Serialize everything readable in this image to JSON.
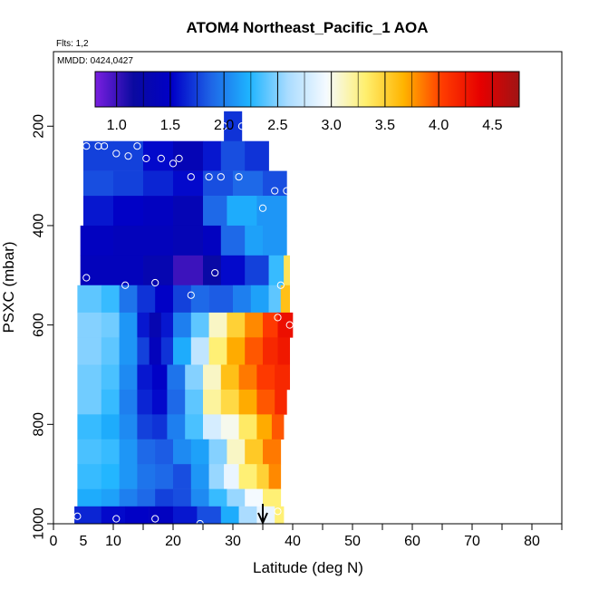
{
  "chart_data": {
    "type": "heatmap",
    "title": "ATOM4 Northeast_Pacific_1 AOA",
    "flights_label": "Flts: 1,2",
    "dates_label": "MMDD: 0424,0427",
    "xlabel": "Latitude (deg N)",
    "ylabel": "PSXC (mbar)",
    "xlim": [
      0,
      85
    ],
    "ylim": [
      1000,
      50
    ],
    "x_ticks": [
      0,
      10,
      20,
      30,
      40,
      50,
      60,
      70,
      80
    ],
    "x_tick_labels": [
      "0",
      "5",
      "10",
      "20",
      "30",
      "40",
      "50",
      "60",
      "70",
      "80"
    ],
    "x_tick_label_values": [
      0,
      5,
      10,
      20,
      30,
      40,
      50,
      60,
      70,
      80
    ],
    "x_minor_ticks": [
      15,
      25,
      35,
      45,
      55,
      65,
      75,
      85
    ],
    "y_ticks": [
      200,
      400,
      600,
      800,
      1000
    ],
    "y_tick_labels": [
      "200",
      "400",
      "600",
      "800",
      "1000"
    ],
    "colorbar": {
      "range": [
        0.8,
        4.75
      ],
      "ticks": [
        1.0,
        1.5,
        2.0,
        2.5,
        3.0,
        3.5,
        4.0,
        4.5
      ],
      "tick_labels": [
        "1.0",
        "1.5",
        "2.0",
        "2.5",
        "3.0",
        "3.5",
        "4.0",
        "4.5"
      ],
      "colors": [
        "#7a1fe0",
        "#0a0aa0",
        "#0000c8",
        "#1e64e6",
        "#1eb4ff",
        "#aadcff",
        "#f5faff",
        "#fff070",
        "#ffb400",
        "#ff3c00",
        "#e60000",
        "#a01414"
      ]
    },
    "rows": [
      {
        "p1": 170,
        "p2": 230,
        "cells": [
          [
            28.5,
            31.5,
            1.7
          ]
        ]
      },
      {
        "p1": 230,
        "p2": 290,
        "cells": [
          [
            5,
            10,
            1.75
          ],
          [
            10,
            15,
            1.75
          ],
          [
            15,
            20,
            1.55
          ],
          [
            20,
            25,
            1.35
          ],
          [
            25,
            28,
            1.6
          ],
          [
            28,
            32,
            1.8
          ],
          [
            32,
            36,
            1.7
          ]
        ]
      },
      {
        "p1": 290,
        "p2": 340,
        "cells": [
          [
            5,
            10,
            1.8
          ],
          [
            10,
            15,
            1.75
          ],
          [
            15,
            20,
            1.65
          ],
          [
            20,
            25,
            1.55
          ],
          [
            25,
            30,
            1.8
          ],
          [
            30,
            35,
            1.9
          ],
          [
            35,
            39,
            1.8
          ]
        ]
      },
      {
        "p1": 340,
        "p2": 400,
        "cells": [
          [
            5,
            10,
            1.6
          ],
          [
            10,
            15,
            1.5
          ],
          [
            15,
            20,
            1.45
          ],
          [
            20,
            25,
            1.35
          ],
          [
            25,
            29,
            1.9
          ],
          [
            29,
            34,
            2.2
          ],
          [
            34,
            39,
            2.1
          ]
        ]
      },
      {
        "p1": 400,
        "p2": 460,
        "cells": [
          [
            4.5,
            10,
            1.45
          ],
          [
            10,
            15,
            1.4
          ],
          [
            15,
            20,
            1.4
          ],
          [
            20,
            25,
            1.35
          ],
          [
            25,
            28,
            1.45
          ],
          [
            28,
            32,
            1.9
          ],
          [
            32,
            35,
            2.15
          ],
          [
            35,
            39,
            2.1
          ]
        ]
      },
      {
        "p1": 460,
        "p2": 520,
        "cells": [
          [
            4.5,
            10,
            1.4
          ],
          [
            10,
            15,
            1.4
          ],
          [
            15,
            20,
            1.3
          ],
          [
            20,
            25,
            1.0
          ],
          [
            25,
            28,
            1.2
          ],
          [
            28,
            32,
            1.55
          ],
          [
            32,
            36,
            1.75
          ],
          [
            36,
            38.5,
            2.3
          ],
          [
            38.5,
            39.5,
            3.4
          ]
        ]
      },
      {
        "p1": 520,
        "p2": 575,
        "cells": [
          [
            4,
            8,
            2.4
          ],
          [
            8,
            11,
            2.3
          ],
          [
            11,
            14,
            1.95
          ],
          [
            14,
            17,
            1.7
          ],
          [
            17,
            20,
            1.5
          ],
          [
            20,
            23,
            1.75
          ],
          [
            23,
            26,
            1.9
          ],
          [
            26,
            30,
            1.85
          ],
          [
            30,
            33,
            2.0
          ],
          [
            33,
            36,
            2.15
          ],
          [
            36,
            38,
            2.4
          ],
          [
            38,
            39.5,
            3.6
          ]
        ]
      },
      {
        "p1": 575,
        "p2": 625,
        "cells": [
          [
            4,
            8,
            2.5
          ],
          [
            8,
            11,
            2.45
          ],
          [
            11,
            14,
            2.1
          ],
          [
            14,
            16,
            1.6
          ],
          [
            16,
            18,
            1.3
          ],
          [
            18,
            20,
            1.6
          ],
          [
            20,
            23,
            2.0
          ],
          [
            23,
            26,
            2.4
          ],
          [
            26,
            29,
            3.1
          ],
          [
            29,
            32,
            3.5
          ],
          [
            32,
            35,
            3.8
          ],
          [
            35,
            37.5,
            4.05
          ],
          [
            37.5,
            40,
            4.3
          ]
        ]
      },
      {
        "p1": 625,
        "p2": 680,
        "cells": [
          [
            4,
            8,
            2.5
          ],
          [
            8,
            11,
            2.4
          ],
          [
            11,
            14,
            2.1
          ],
          [
            14,
            16,
            1.75
          ],
          [
            16,
            18,
            1.4
          ],
          [
            18,
            20,
            1.7
          ],
          [
            20,
            23,
            2.2
          ],
          [
            23,
            26,
            2.7
          ],
          [
            26,
            29,
            3.3
          ],
          [
            29,
            32,
            3.7
          ],
          [
            32,
            35,
            3.95
          ],
          [
            35,
            37.5,
            4.15
          ],
          [
            37.5,
            39.5,
            4.25
          ]
        ]
      },
      {
        "p1": 680,
        "p2": 730,
        "cells": [
          [
            4,
            8,
            2.45
          ],
          [
            8,
            11,
            2.35
          ],
          [
            11,
            14,
            2.05
          ],
          [
            14,
            16.5,
            1.6
          ],
          [
            16.5,
            19,
            1.5
          ],
          [
            19,
            22,
            1.95
          ],
          [
            22,
            25,
            2.5
          ],
          [
            25,
            28,
            3.1
          ],
          [
            28,
            31,
            3.6
          ],
          [
            31,
            34,
            3.85
          ],
          [
            34,
            37,
            4.05
          ],
          [
            37,
            39.5,
            4.15
          ]
        ]
      },
      {
        "p1": 730,
        "p2": 780,
        "cells": [
          [
            4,
            8,
            2.45
          ],
          [
            8,
            11,
            2.3
          ],
          [
            11,
            14,
            2.0
          ],
          [
            14,
            16.5,
            1.65
          ],
          [
            16.5,
            19,
            1.55
          ],
          [
            19,
            22,
            1.9
          ],
          [
            22,
            25,
            2.4
          ],
          [
            25,
            28,
            3.2
          ],
          [
            28,
            31,
            3.45
          ],
          [
            31,
            34,
            3.7
          ],
          [
            34,
            37,
            3.95
          ],
          [
            37,
            39,
            4.15
          ]
        ]
      },
      {
        "p1": 780,
        "p2": 830,
        "cells": [
          [
            4,
            8,
            2.3
          ],
          [
            8,
            11,
            2.2
          ],
          [
            11,
            14,
            2.05
          ],
          [
            14,
            16.5,
            1.75
          ],
          [
            16.5,
            19,
            1.7
          ],
          [
            19,
            22,
            2.0
          ],
          [
            22,
            25,
            2.35
          ],
          [
            25,
            28,
            2.8
          ],
          [
            28,
            31,
            3.0
          ],
          [
            31,
            34,
            3.35
          ],
          [
            34,
            36.5,
            3.7
          ],
          [
            36.5,
            38.5,
            3.95
          ]
        ]
      },
      {
        "p1": 830,
        "p2": 880,
        "cells": [
          [
            4,
            8,
            2.35
          ],
          [
            8,
            11,
            2.3
          ],
          [
            11,
            14,
            2.1
          ],
          [
            14,
            17,
            1.9
          ],
          [
            17,
            20,
            1.85
          ],
          [
            20,
            23,
            2.05
          ],
          [
            23,
            26,
            2.15
          ],
          [
            26,
            29,
            2.5
          ],
          [
            29,
            32,
            3.1
          ],
          [
            32,
            35,
            3.55
          ],
          [
            35,
            38,
            3.85
          ]
        ]
      },
      {
        "p1": 880,
        "p2": 930,
        "cells": [
          [
            4,
            8,
            2.3
          ],
          [
            8,
            11,
            2.25
          ],
          [
            11,
            14,
            2.1
          ],
          [
            14,
            17,
            1.95
          ],
          [
            17,
            20,
            1.9
          ],
          [
            20,
            23,
            1.8
          ],
          [
            23,
            26,
            2.1
          ],
          [
            26,
            28.5,
            2.55
          ],
          [
            28.5,
            31,
            2.9
          ],
          [
            31,
            34,
            3.3
          ],
          [
            34,
            36,
            3.5
          ],
          [
            36,
            38,
            3.8
          ]
        ]
      },
      {
        "p1": 930,
        "p2": 965,
        "cells": [
          [
            4,
            8,
            2.2
          ],
          [
            8,
            11,
            2.15
          ],
          [
            11,
            14,
            2.0
          ],
          [
            14,
            17,
            1.9
          ],
          [
            17,
            20,
            1.75
          ],
          [
            20,
            23,
            1.8
          ],
          [
            23,
            26,
            2.05
          ],
          [
            26,
            29,
            2.3
          ],
          [
            29,
            32,
            2.55
          ],
          [
            32,
            35,
            2.95
          ],
          [
            35,
            38,
            3.3
          ]
        ]
      },
      {
        "p1": 965,
        "p2": 1000,
        "cells": [
          [
            3.5,
            8,
            1.65
          ],
          [
            8,
            12,
            1.55
          ],
          [
            12,
            16,
            1.5
          ],
          [
            16,
            20,
            1.45
          ],
          [
            20,
            24,
            1.6
          ],
          [
            24,
            28,
            1.8
          ],
          [
            28,
            31,
            2.2
          ],
          [
            31,
            34,
            2.6
          ],
          [
            34,
            37,
            2.9
          ],
          [
            37,
            38.5,
            3.3
          ]
        ]
      }
    ],
    "points": [
      [
        28.5,
        200
      ],
      [
        31.5,
        200
      ],
      [
        5.5,
        240
      ],
      [
        7.5,
        240
      ],
      [
        8.5,
        240
      ],
      [
        10.5,
        255
      ],
      [
        12.5,
        260
      ],
      [
        14,
        240
      ],
      [
        15.5,
        265
      ],
      [
        18,
        265
      ],
      [
        20,
        275
      ],
      [
        21,
        265
      ],
      [
        23,
        302
      ],
      [
        26,
        302
      ],
      [
        28,
        302
      ],
      [
        31,
        302
      ],
      [
        37,
        330
      ],
      [
        39,
        330
      ],
      [
        35,
        365
      ],
      [
        5.5,
        505
      ],
      [
        27,
        495
      ],
      [
        12,
        520
      ],
      [
        17,
        515
      ],
      [
        38,
        520
      ],
      [
        23,
        540
      ],
      [
        37.5,
        585
      ],
      [
        39.5,
        600
      ],
      [
        4,
        985
      ],
      [
        10.5,
        990
      ],
      [
        17,
        990
      ],
      [
        24.5,
        1000
      ],
      [
        37.5,
        975
      ]
    ],
    "arrow_x": 35
  }
}
